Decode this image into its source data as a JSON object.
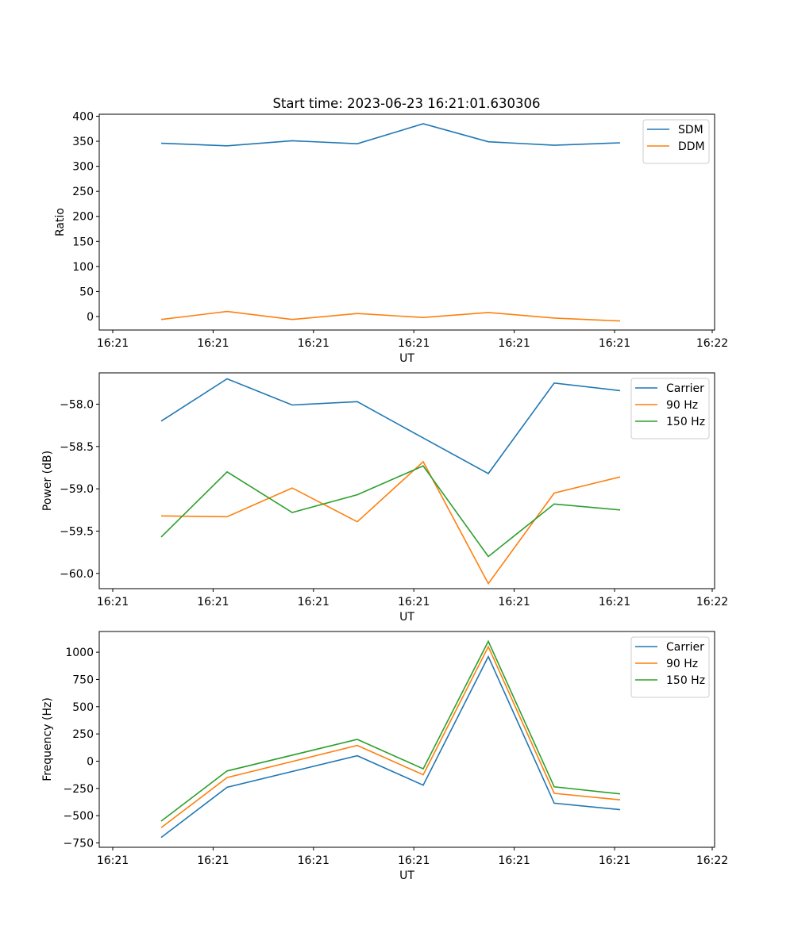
{
  "title": "Start time: 2023-06-23 16:21:01.630306",
  "chart_data": [
    {
      "type": "line",
      "ylabel": "Ratio",
      "xlabel": "UT",
      "ylim": [
        -27,
        404
      ],
      "yticks": [
        0,
        50,
        100,
        150,
        200,
        250,
        300,
        350,
        400
      ],
      "xtick_labels": [
        "16:21",
        "16:21",
        "16:21",
        "16:21",
        "16:21",
        "16:21",
        "16:21",
        "16:22"
      ],
      "x_index_range": [
        -1.1,
        7.35
      ],
      "legend_position": "top-right",
      "series": [
        {
          "name": "SDM",
          "color": "#1f77b4",
          "values": [
            346,
            341,
            351,
            345,
            385,
            349,
            342,
            347
          ]
        },
        {
          "name": "DDM",
          "color": "#ff7f0e",
          "values": [
            -6,
            10,
            -6,
            6,
            -2,
            8,
            -3,
            -9
          ]
        }
      ]
    },
    {
      "type": "line",
      "ylabel": "Power (dB)",
      "xlabel": "UT",
      "ylim": [
        -60.18,
        -57.63
      ],
      "yticks": [
        -60.0,
        -59.5,
        -59.0,
        -58.5,
        -58.0
      ],
      "xtick_labels": [
        "16:21",
        "16:21",
        "16:21",
        "16:21",
        "16:21",
        "16:21",
        "16:21",
        "16:22"
      ],
      "x_index_range": [
        -1.1,
        7.35
      ],
      "legend_position": "top-right",
      "series": [
        {
          "name": "Carrier",
          "color": "#1f77b4",
          "values": [
            -58.2,
            -57.7,
            -58.01,
            -57.97,
            -58.4,
            -58.82,
            -57.75,
            -57.84
          ]
        },
        {
          "name": "90 Hz",
          "color": "#ff7f0e",
          "values": [
            -59.32,
            -59.33,
            -58.99,
            -59.39,
            -58.68,
            -60.12,
            -59.05,
            -58.86
          ]
        },
        {
          "name": "150 Hz",
          "color": "#2ca02c",
          "values": [
            -59.57,
            -58.8,
            -59.28,
            -59.07,
            -58.73,
            -59.8,
            -59.18,
            -59.25
          ]
        }
      ]
    },
    {
      "type": "line",
      "ylabel": "Frequency (Hz)",
      "xlabel": "UT",
      "ylim": [
        -790,
        1190
      ],
      "yticks": [
        -750,
        -500,
        -250,
        0,
        250,
        500,
        750,
        1000
      ],
      "xtick_labels": [
        "16:21",
        "16:21",
        "16:21",
        "16:21",
        "16:21",
        "16:21",
        "16:21",
        "16:22"
      ],
      "x_index_range": [
        -1.1,
        7.35
      ],
      "legend_position": "top-right",
      "series": [
        {
          "name": "Carrier",
          "color": "#1f77b4",
          "values": [
            -700,
            -240,
            null,
            50,
            -220,
            960,
            -385,
            -445
          ]
        },
        {
          "name": "90 Hz",
          "color": "#ff7f0e",
          "values": [
            -610,
            -150,
            null,
            145,
            -125,
            1050,
            -295,
            -355
          ]
        },
        {
          "name": "150 Hz",
          "color": "#2ca02c",
          "values": [
            -550,
            -90,
            null,
            200,
            -70,
            1100,
            -235,
            -300
          ]
        }
      ]
    }
  ]
}
